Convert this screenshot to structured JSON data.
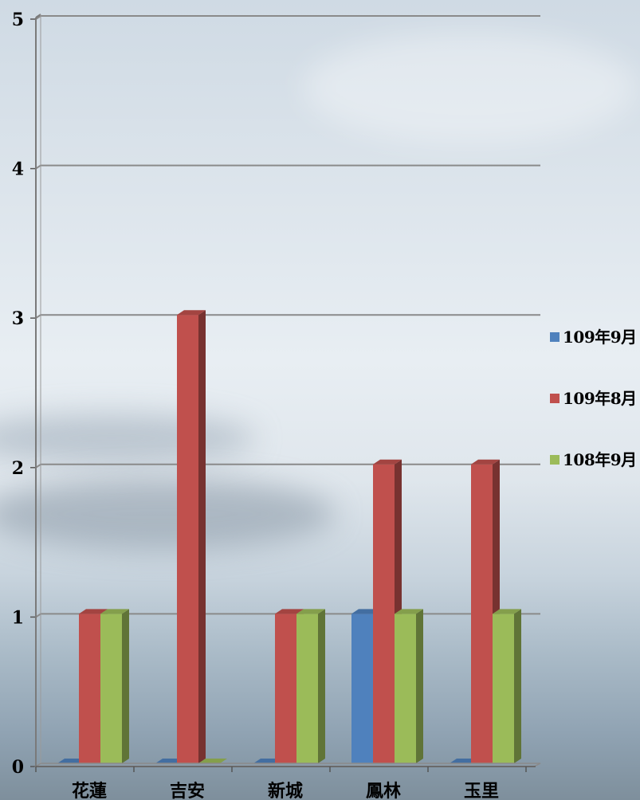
{
  "chart_data": {
    "type": "bar",
    "style": "3d-clustered-column",
    "categories": [
      "花蓮",
      "吉安",
      "新城",
      "鳳林",
      "玉里"
    ],
    "series": [
      {
        "name": "109年9月",
        "color": "#4f81bd",
        "values": [
          0,
          0,
          0,
          1,
          0
        ]
      },
      {
        "name": "109年8月",
        "color": "#c0504d",
        "values": [
          1,
          3,
          1,
          2,
          2
        ]
      },
      {
        "name": "108年9月",
        "color": "#9bbb59",
        "values": [
          1,
          0,
          1,
          1,
          1
        ]
      }
    ],
    "ylim": [
      0,
      5
    ],
    "yticks": [
      "0",
      "1",
      "2",
      "3",
      "4",
      "5"
    ],
    "grid": true,
    "legend_position": "right",
    "title": "",
    "xlabel": "",
    "ylabel": ""
  }
}
